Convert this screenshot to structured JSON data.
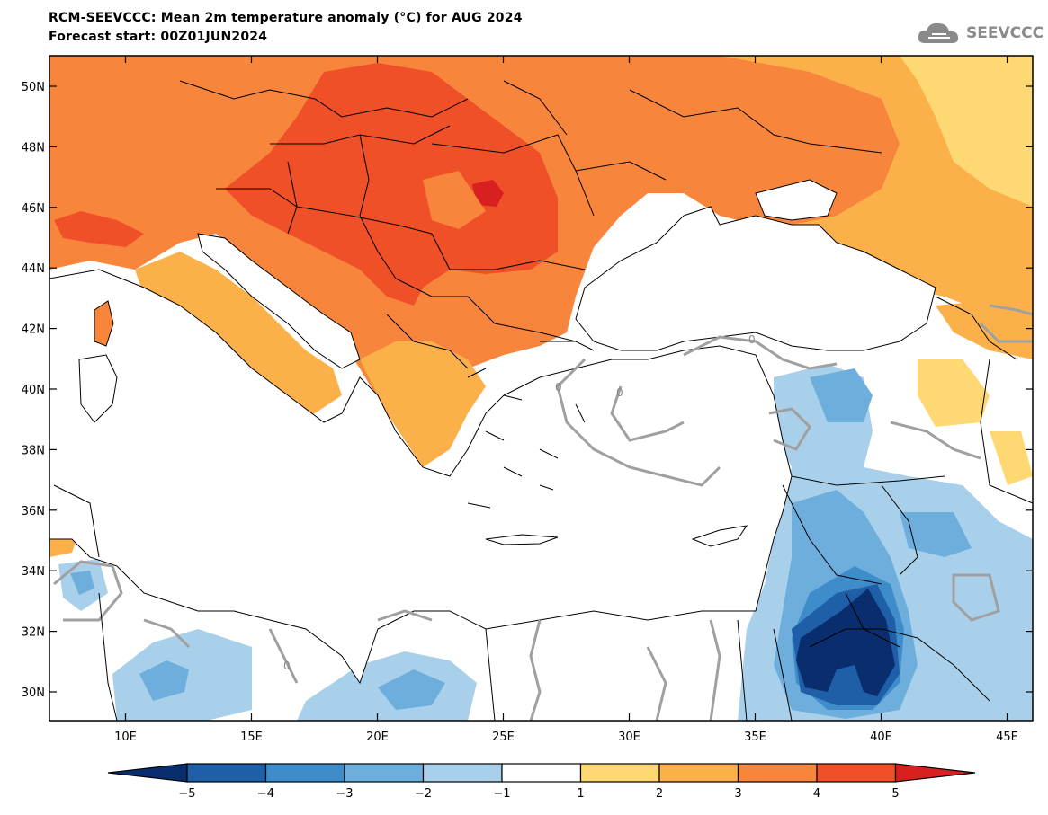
{
  "header": {
    "title": "RCM-SEEVCCC: Mean 2m temperature anomaly (°C) for AUG 2024",
    "subtitle": "Forecast start: 00Z01JUN2024",
    "logo_text": "SEEVCCC",
    "logo_icon": "cloud-icon"
  },
  "map": {
    "lat_labels": [
      "50N",
      "48N",
      "46N",
      "44N",
      "42N",
      "40N",
      "38N",
      "36N",
      "34N",
      "32N",
      "30N"
    ],
    "lon_labels": [
      "10E",
      "15E",
      "20E",
      "25E",
      "30E",
      "35E",
      "40E",
      "45E"
    ],
    "contour_label": "0"
  },
  "colorbar": {
    "ticks": [
      "−5",
      "−4",
      "−3",
      "−2",
      "−1",
      "1",
      "2",
      "3",
      "4",
      "5"
    ],
    "colors": [
      "#0a2d6e",
      "#1f5fa8",
      "#3f8ccb",
      "#6eaedc",
      "#a9d0ea",
      "#ffffff",
      "#fed873",
      "#fbb04a",
      "#f7853c",
      "#f05028",
      "#d82020"
    ]
  },
  "colors": {
    "sea": "#ffffff",
    "border": "#000000",
    "contour": "#a0a0a0"
  }
}
